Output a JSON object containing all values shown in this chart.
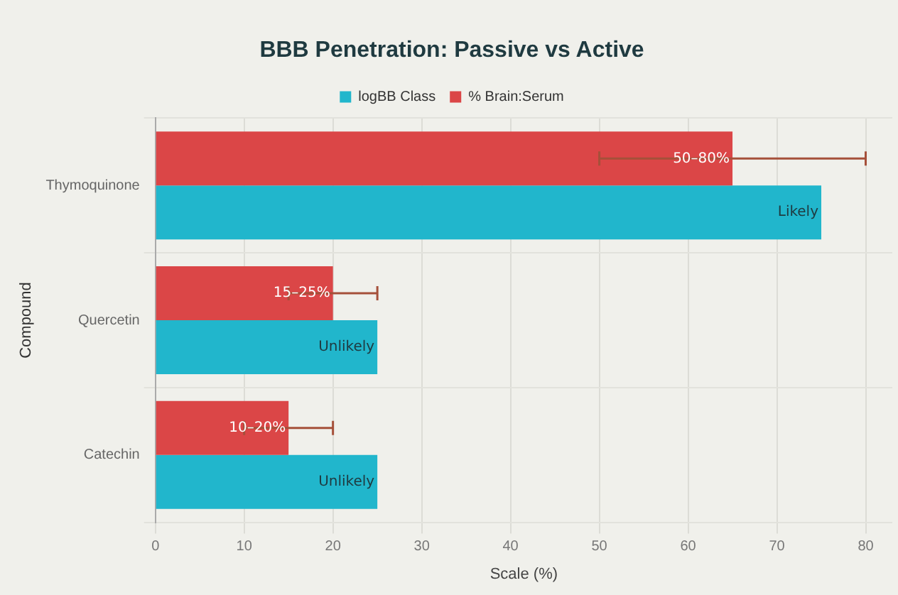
{
  "chart_data": {
    "type": "bar",
    "orientation": "horizontal",
    "title": "BBB Penetration: Passive vs Active",
    "xlabel": "Scale (%)",
    "ylabel": "Compound",
    "categories": [
      "Thymoquinone",
      "Quercetin",
      "Catechin"
    ],
    "series": [
      {
        "name": "logBB Class",
        "color": "#21b6cc",
        "values": [
          75,
          25,
          25
        ],
        "value_labels": [
          "Likely",
          "Unlikely",
          "Unlikely"
        ]
      },
      {
        "name": "% Brain:Serum",
        "color": "#db4647",
        "values": [
          65,
          20,
          15
        ],
        "errors": [
          [
            50,
            80
          ],
          [
            15,
            25
          ],
          [
            10,
            20
          ]
        ]
      }
    ],
    "annotations": [
      {
        "text": "50–80%",
        "x": 65,
        "y": "Thymoquinone"
      },
      {
        "text": "15–25%",
        "x": 20,
        "y": "Quercetin"
      },
      {
        "text": "10–20%",
        "x": 15,
        "y": "Catechin"
      }
    ],
    "xlim": [
      0,
      83
    ],
    "xticks": [
      0,
      10,
      20,
      30,
      40,
      50,
      60,
      70,
      80
    ],
    "grid": true,
    "legend": "top"
  }
}
